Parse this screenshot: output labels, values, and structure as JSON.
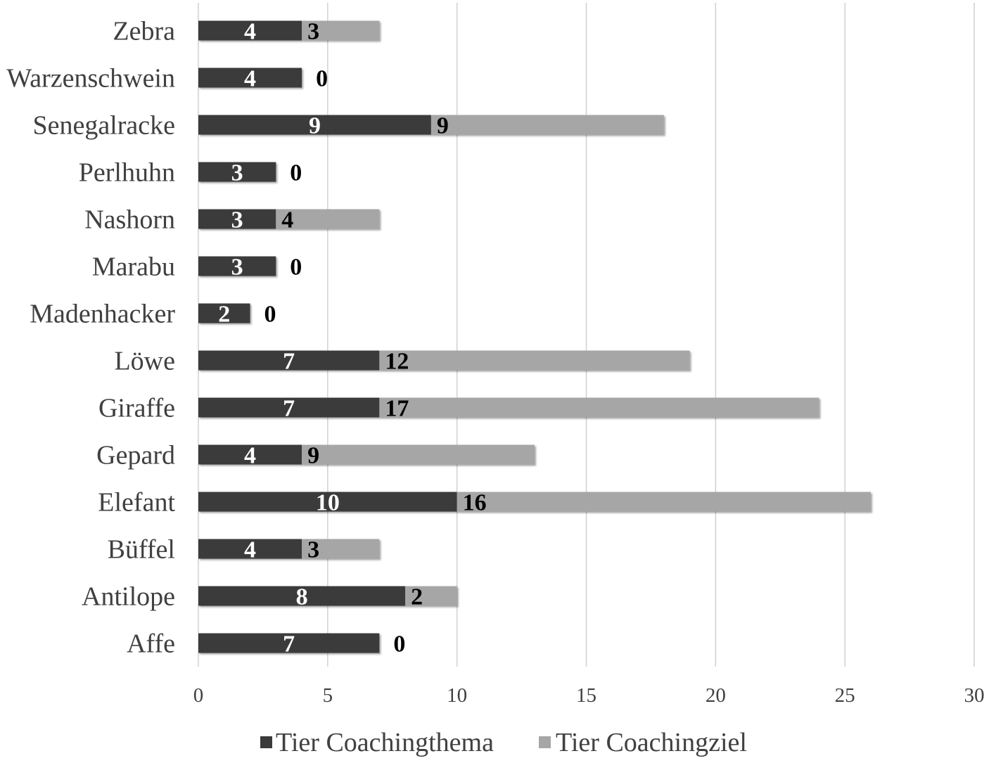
{
  "chart_data": {
    "type": "bar",
    "orientation": "horizontal",
    "stacked": true,
    "categories": [
      "Affe",
      "Antilope",
      "Büffel",
      "Elefant",
      "Gepard",
      "Giraffe",
      "Löwe",
      "Madenhacker",
      "Marabu",
      "Nashorn",
      "Perlhuhn",
      "Senegalracke",
      "Warzenschwein",
      "Zebra"
    ],
    "series": [
      {
        "name": "Tier Coachingthema",
        "color": "#3a3a3a",
        "label_color": "#ffffff",
        "values": [
          7,
          8,
          4,
          10,
          4,
          7,
          7,
          2,
          3,
          3,
          3,
          9,
          4,
          4
        ]
      },
      {
        "name": "Tier Coachingziel",
        "color": "#a6a6a6",
        "label_color": "#000000",
        "values": [
          0,
          2,
          3,
          16,
          9,
          17,
          12,
          0,
          0,
          4,
          0,
          9,
          0,
          3
        ]
      }
    ],
    "xlim": [
      0,
      30
    ],
    "xticks": [
      "0",
      "5",
      "10",
      "15",
      "20",
      "25",
      "30"
    ],
    "grid": "vertical",
    "legend_position": "bottom",
    "title": "",
    "xlabel": "",
    "ylabel": ""
  }
}
